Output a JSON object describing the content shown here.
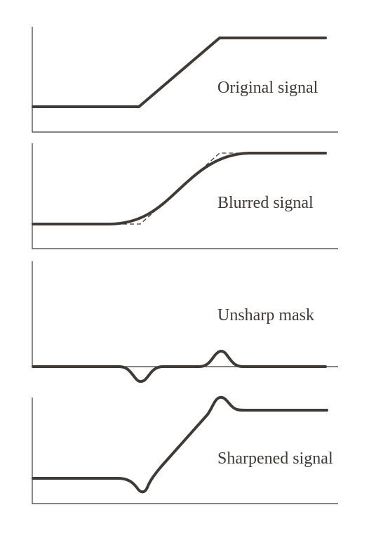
{
  "panels": [
    {
      "label": "Original signal"
    },
    {
      "label": "Blurred signal"
    },
    {
      "label": "Unsharp mask"
    },
    {
      "label": "Sharpened signal"
    }
  ],
  "colors": {
    "ink": "#3f3a35",
    "background": "#ffffff"
  }
}
